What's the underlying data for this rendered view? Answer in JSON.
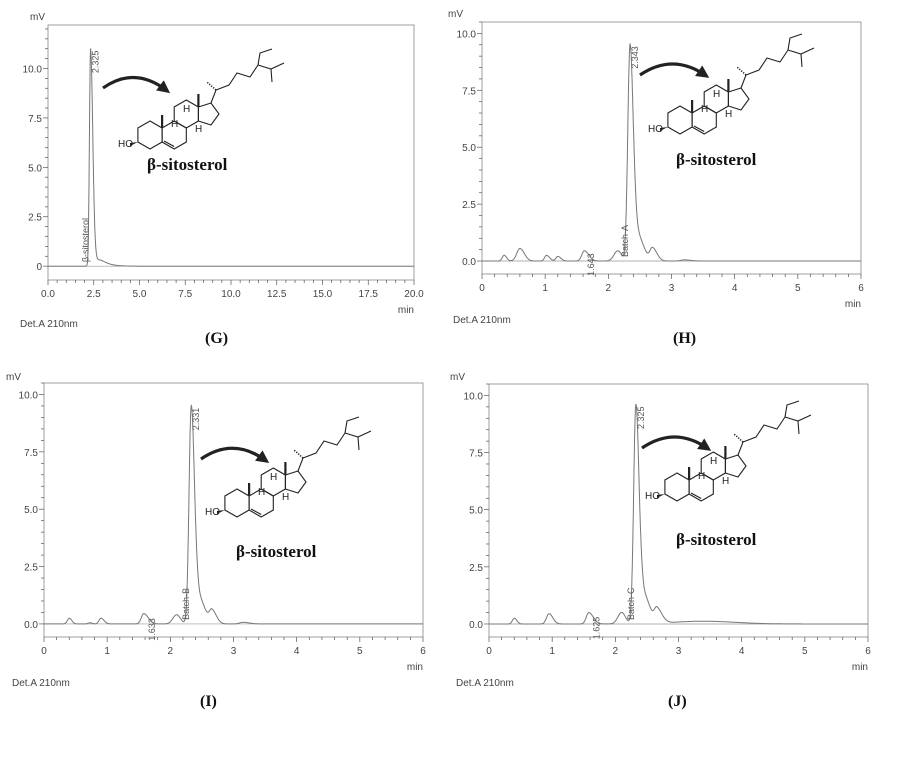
{
  "colors": {
    "trace": "#777777",
    "axis": "#555555",
    "text": "#111111"
  },
  "structure_labels": {
    "hydroxyl": "HO",
    "hydrogen": "H"
  },
  "chart_data": [
    {
      "type": "line",
      "panel": "(G)",
      "compound": "β-sitosterol",
      "ylabel": "mV",
      "xlabel": "min",
      "detector": "Det.A 210nm",
      "xlim": [
        0,
        20
      ],
      "ylim": [
        -0.7,
        12.2
      ],
      "xticks": [
        "0.0",
        "2.5",
        "5.0",
        "7.5",
        "10.0",
        "12.5",
        "15.0",
        "17.5",
        "20.0"
      ],
      "xtick_values": [
        0,
        2.5,
        5,
        7.5,
        10,
        12.5,
        15,
        17.5,
        20
      ],
      "yticks": [
        "0",
        "2.5",
        "5.0",
        "7.5",
        "10.0"
      ],
      "ytick_values": [
        0,
        2.5,
        5,
        7.5,
        10
      ],
      "peaks": [
        [
          2.325,
          11.0,
          0.06,
          0.12
        ],
        [
          2.6,
          0.3,
          0.1,
          0.4
        ],
        [
          3.0,
          0.08,
          0.2,
          0.6
        ]
      ],
      "peak_labels": [
        {
          "rt": 2.325,
          "text": "2.325",
          "side": "top"
        },
        {
          "rt": 2.325,
          "text": "β-sitosterol",
          "side": "left"
        }
      ]
    },
    {
      "type": "line",
      "panel": "(H)",
      "compound": "β-sitosterol",
      "ylabel": "mV",
      "xlabel": "min",
      "detector": "Det.A 210nm",
      "xlim": [
        0,
        6
      ],
      "ylim": [
        -0.57,
        10.5
      ],
      "xticks": [
        "0",
        "1",
        "2",
        "3",
        "4",
        "5",
        "6"
      ],
      "xtick_values": [
        0,
        1,
        2,
        3,
        4,
        5,
        6
      ],
      "yticks": [
        "0.0",
        "2.5",
        "5.0",
        "7.5",
        "10.0"
      ],
      "ytick_values": [
        0,
        2.5,
        5,
        7.5,
        10
      ],
      "peaks": [
        [
          0.35,
          0.25,
          0.03,
          0.04
        ],
        [
          0.6,
          0.55,
          0.05,
          0.07
        ],
        [
          1.02,
          0.25,
          0.03,
          0.05
        ],
        [
          1.2,
          0.2,
          0.03,
          0.05
        ],
        [
          1.62,
          0.45,
          0.04,
          0.07
        ],
        [
          2.15,
          0.45,
          0.06,
          0.06
        ],
        [
          2.343,
          9.4,
          0.035,
          0.05
        ],
        [
          2.45,
          1.2,
          0.05,
          0.1
        ],
        [
          2.7,
          0.55,
          0.04,
          0.07
        ],
        [
          3.2,
          0.05,
          0.05,
          0.1
        ]
      ],
      "peak_labels": [
        {
          "rt": 1.643,
          "text": "1.643",
          "side": "top"
        },
        {
          "rt": 2.343,
          "text": "2.343",
          "side": "top"
        },
        {
          "rt": 2.343,
          "text": "Batch-A",
          "side": "left"
        }
      ]
    },
    {
      "type": "line",
      "panel": "(I)",
      "compound": "β-sitosterol",
      "ylabel": "mV",
      "xlabel": "min",
      "detector": "Det.A 210nm",
      "xlim": [
        0,
        6
      ],
      "ylim": [
        -0.57,
        10.5
      ],
      "xticks": [
        "0",
        "1",
        "2",
        "3",
        "4",
        "5",
        "6"
      ],
      "xtick_values": [
        0,
        1,
        2,
        3,
        4,
        5,
        6
      ],
      "yticks": [
        "0.0",
        "2.5",
        "5.0",
        "7.5",
        "10.0"
      ],
      "ytick_values": [
        0,
        2.5,
        5,
        7.5,
        10
      ],
      "peaks": [
        [
          0.4,
          0.25,
          0.03,
          0.04
        ],
        [
          0.73,
          0.05,
          0.03,
          0.03
        ],
        [
          0.9,
          0.25,
          0.03,
          0.05
        ],
        [
          1.58,
          0.45,
          0.04,
          0.07
        ],
        [
          2.1,
          0.4,
          0.06,
          0.06
        ],
        [
          2.331,
          9.4,
          0.035,
          0.05
        ],
        [
          2.44,
          1.2,
          0.05,
          0.1
        ],
        [
          2.66,
          0.55,
          0.04,
          0.07
        ],
        [
          3.15,
          0.07,
          0.05,
          0.1
        ]
      ],
      "peak_labels": [
        {
          "rt": 1.633,
          "text": "1.633",
          "side": "top"
        },
        {
          "rt": 2.331,
          "text": "2.331",
          "side": "top"
        },
        {
          "rt": 2.331,
          "text": "Batch-B",
          "side": "left"
        }
      ]
    },
    {
      "type": "line",
      "panel": "(J)",
      "compound": "β-sitosterol",
      "ylabel": "mV",
      "xlabel": "min",
      "detector": "Det.A 210nm",
      "xlim": [
        0,
        6
      ],
      "ylim": [
        -0.57,
        10.5
      ],
      "xticks": [
        "0",
        "1",
        "2",
        "3",
        "4",
        "5",
        "6"
      ],
      "xtick_values": [
        0,
        1,
        2,
        3,
        4,
        5,
        6
      ],
      "yticks": [
        "0.0",
        "2.5",
        "5.0",
        "7.5",
        "10.0"
      ],
      "ytick_values": [
        0,
        2.5,
        5,
        7.5,
        10
      ],
      "peaks": [
        [
          0.4,
          0.25,
          0.03,
          0.04
        ],
        [
          0.95,
          0.45,
          0.04,
          0.06
        ],
        [
          1.58,
          0.5,
          0.04,
          0.07
        ],
        [
          2.1,
          0.5,
          0.06,
          0.06
        ],
        [
          2.325,
          9.5,
          0.035,
          0.05
        ],
        [
          2.44,
          1.3,
          0.05,
          0.1
        ],
        [
          2.66,
          0.6,
          0.04,
          0.08
        ],
        [
          3.4,
          0.12,
          0.5,
          0.5
        ]
      ],
      "peak_labels": [
        {
          "rt": 1.625,
          "text": "1.625",
          "side": "top"
        },
        {
          "rt": 2.325,
          "text": "2.325",
          "side": "top"
        },
        {
          "rt": 2.325,
          "text": "Batch-C",
          "side": "left"
        }
      ]
    }
  ]
}
